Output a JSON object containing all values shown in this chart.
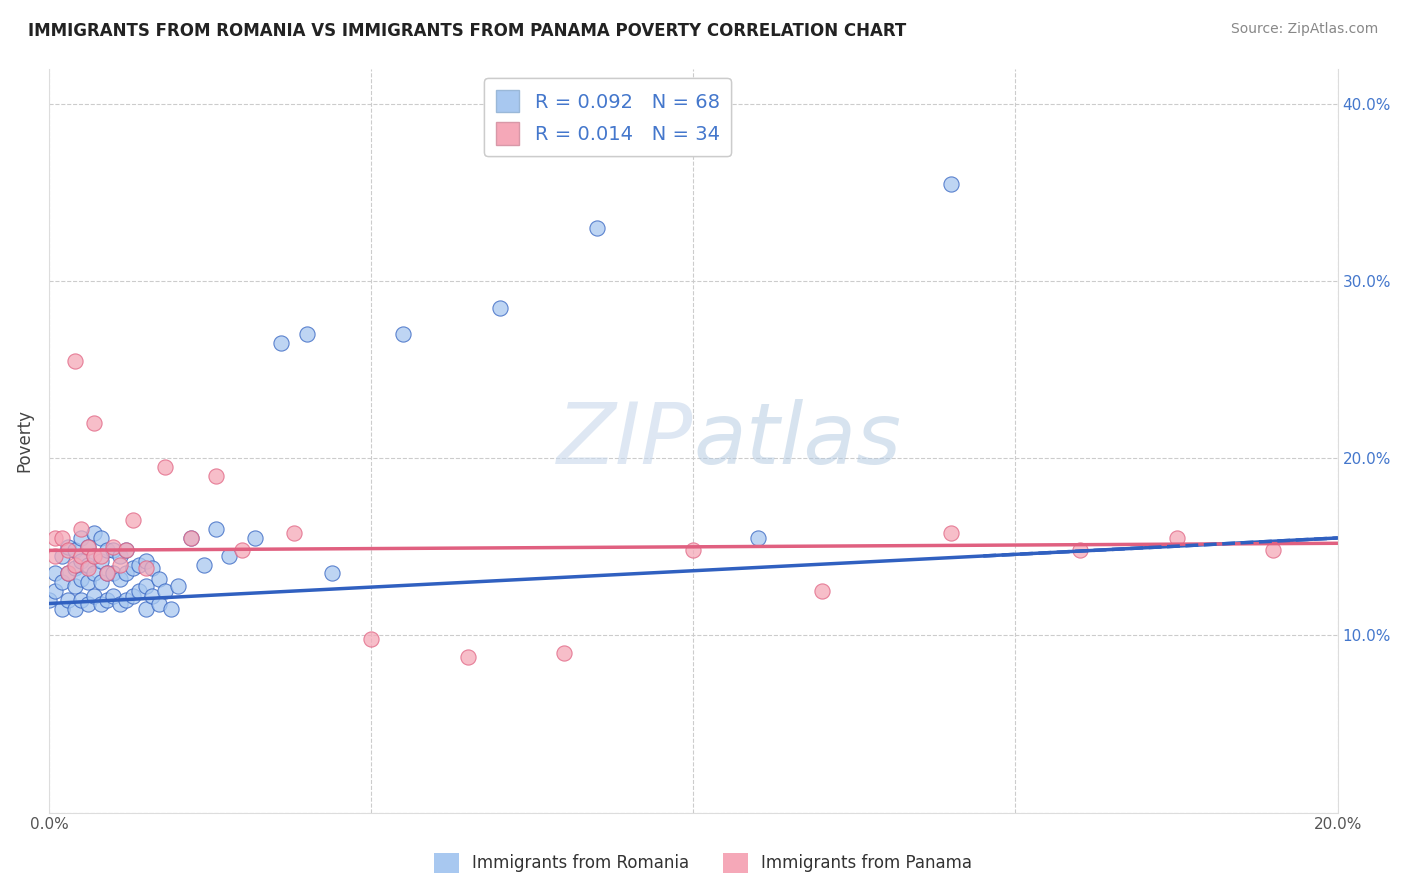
{
  "title": "IMMIGRANTS FROM ROMANIA VS IMMIGRANTS FROM PANAMA POVERTY CORRELATION CHART",
  "source": "Source: ZipAtlas.com",
  "ylabel": "Poverty",
  "xlim": [
    0.0,
    0.2
  ],
  "ylim": [
    0.0,
    0.42
  ],
  "xticks": [
    0.0,
    0.05,
    0.1,
    0.15,
    0.2
  ],
  "yticks": [
    0.0,
    0.1,
    0.2,
    0.3,
    0.4
  ],
  "romania_color": "#a8c8f0",
  "panama_color": "#f5a8b8",
  "romania_line_color": "#3060c0",
  "panama_line_color": "#e06080",
  "romania_R": 0.092,
  "romania_N": 68,
  "panama_R": 0.014,
  "panama_N": 34,
  "background_color": "#ffffff",
  "grid_color": "#cccccc",
  "romania_scatter_x": [
    0.0,
    0.001,
    0.001,
    0.002,
    0.002,
    0.002,
    0.003,
    0.003,
    0.003,
    0.004,
    0.004,
    0.004,
    0.004,
    0.005,
    0.005,
    0.005,
    0.005,
    0.006,
    0.006,
    0.006,
    0.006,
    0.007,
    0.007,
    0.007,
    0.007,
    0.008,
    0.008,
    0.008,
    0.008,
    0.009,
    0.009,
    0.009,
    0.01,
    0.01,
    0.01,
    0.011,
    0.011,
    0.011,
    0.012,
    0.012,
    0.012,
    0.013,
    0.013,
    0.014,
    0.014,
    0.015,
    0.015,
    0.015,
    0.016,
    0.016,
    0.017,
    0.017,
    0.018,
    0.019,
    0.02,
    0.022,
    0.024,
    0.026,
    0.028,
    0.032,
    0.036,
    0.04,
    0.044,
    0.055,
    0.07,
    0.085,
    0.11,
    0.14
  ],
  "romania_scatter_y": [
    0.12,
    0.125,
    0.135,
    0.115,
    0.13,
    0.145,
    0.12,
    0.135,
    0.15,
    0.115,
    0.128,
    0.138,
    0.148,
    0.12,
    0.132,
    0.142,
    0.155,
    0.118,
    0.13,
    0.14,
    0.15,
    0.122,
    0.135,
    0.145,
    0.158,
    0.118,
    0.13,
    0.142,
    0.155,
    0.12,
    0.135,
    0.148,
    0.122,
    0.135,
    0.148,
    0.118,
    0.132,
    0.145,
    0.12,
    0.135,
    0.148,
    0.122,
    0.138,
    0.125,
    0.14,
    0.115,
    0.128,
    0.142,
    0.122,
    0.138,
    0.118,
    0.132,
    0.125,
    0.115,
    0.128,
    0.155,
    0.14,
    0.16,
    0.145,
    0.155,
    0.265,
    0.27,
    0.135,
    0.27,
    0.285,
    0.33,
    0.155,
    0.355
  ],
  "panama_scatter_x": [
    0.001,
    0.001,
    0.002,
    0.003,
    0.003,
    0.004,
    0.004,
    0.005,
    0.005,
    0.006,
    0.006,
    0.007,
    0.007,
    0.008,
    0.009,
    0.01,
    0.011,
    0.012,
    0.013,
    0.015,
    0.018,
    0.022,
    0.026,
    0.03,
    0.038,
    0.05,
    0.065,
    0.08,
    0.1,
    0.12,
    0.14,
    0.16,
    0.175,
    0.19
  ],
  "panama_scatter_y": [
    0.145,
    0.155,
    0.155,
    0.135,
    0.148,
    0.14,
    0.255,
    0.145,
    0.16,
    0.138,
    0.15,
    0.145,
    0.22,
    0.145,
    0.135,
    0.15,
    0.14,
    0.148,
    0.165,
    0.138,
    0.195,
    0.155,
    0.19,
    0.148,
    0.158,
    0.098,
    0.088,
    0.09,
    0.148,
    0.125,
    0.158,
    0.148,
    0.155,
    0.148
  ]
}
